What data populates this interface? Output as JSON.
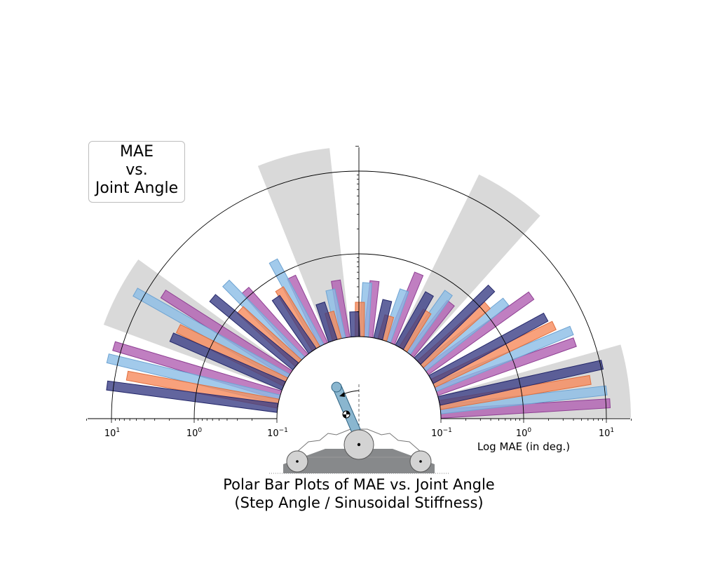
{
  "legend_box": {
    "line1": "MAE",
    "line2": "vs.",
    "line3": "Joint Angle"
  },
  "colors": {
    "purple": "#b05fb2",
    "light_blue": "#8bbde6",
    "orange": "#f68a5b",
    "navy": "#3b3f86",
    "highlight": "#d9d9d9",
    "robot_body": "#87898b",
    "pendulum": "#8ab6cf"
  },
  "chart_data": {
    "type": "bar",
    "projection": "polar half-disc (0°–180°), radial axis log scale",
    "title": "Polar Bar Plots of MAE vs. Joint Angle\n(Step Angle / Sinusoidal Stiffness)",
    "title_lines": [
      "Polar Bar Plots of MAE vs. Joint Angle",
      "(Step Angle / Sinusoidal Stiffness)"
    ],
    "xlabel": "Log MAE (in deg.)",
    "radial_scale": "log",
    "rlim": [
      0.1,
      20
    ],
    "tick_labels": [
      "10⁻¹",
      "10⁰",
      "10¹"
    ],
    "tick_values": [
      0.1,
      1,
      10
    ],
    "angle_groups_deg": [
      8,
      24,
      40,
      56,
      72,
      88,
      104,
      120,
      136,
      152,
      168
    ],
    "highlighted_groups_deg": [
      8,
      56,
      104,
      152
    ],
    "series": [
      {
        "color_key": "purple",
        "values": [
          11.2,
          6.0,
          3.7,
          0.62,
          0.8,
          0.48,
          0.5,
          0.8,
          1.2,
          6.5,
          12.5
        ]
      },
      {
        "color_key": "light_blue",
        "values": [
          10.5,
          6.2,
          1.9,
          0.75,
          0.45,
          0.45,
          0.4,
          1.5,
          2.0,
          13.0,
          13.5
        ]
      },
      {
        "color_key": "orange",
        "values": [
          7.0,
          4.2,
          1.2,
          0.35,
          0.2,
          0.26,
          0.22,
          0.7,
          0.9,
          2.8,
          7.2
        ]
      },
      {
        "color_key": "navy",
        "values": [
          10.5,
          3.8,
          1.8,
          0.55,
          0.3,
          0.2,
          0.3,
          0.6,
          2.0,
          3.0,
          12.0
        ]
      }
    ]
  }
}
